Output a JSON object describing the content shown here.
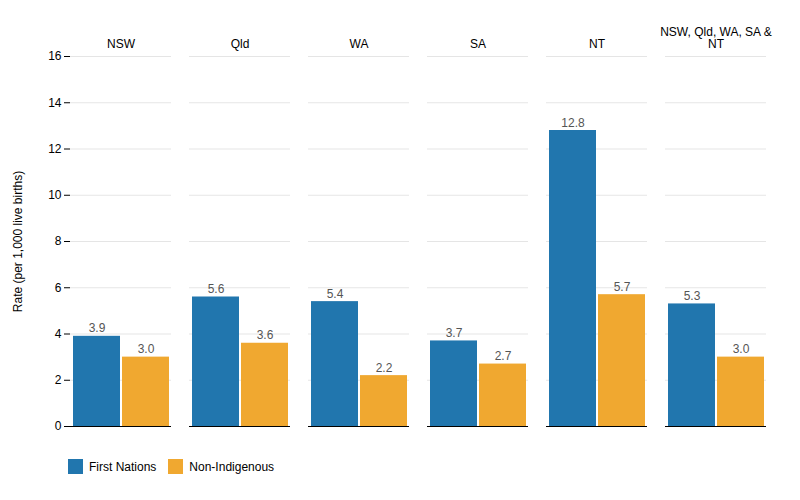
{
  "chart_data": {
    "type": "bar",
    "categories": [
      "NSW",
      "Qld",
      "WA",
      "SA",
      "NT",
      "NSW, Qld, WA, SA &\nNT"
    ],
    "series": [
      {
        "name": "First Nations",
        "color": "#2176ae",
        "values": [
          3.9,
          5.6,
          5.4,
          3.7,
          12.8,
          5.3
        ],
        "value_labels": [
          "3.9",
          "5.6",
          "5.4",
          "3.7",
          "12.8",
          "5.3"
        ]
      },
      {
        "name": "Non-Indigenous",
        "color": "#f0a830",
        "values": [
          3.0,
          3.6,
          2.2,
          2.7,
          5.7,
          3.0
        ],
        "value_labels": [
          "3.0",
          "3.6",
          "2.2",
          "2.7",
          "5.7",
          "3.0"
        ]
      }
    ],
    "ylabel": "Rate (per 1,000 live births)",
    "ylim": [
      0,
      16
    ],
    "yticks": [
      0,
      2,
      4,
      6,
      8,
      10,
      12,
      14,
      16
    ],
    "grid": true,
    "legend": "lower left",
    "data_labels": true
  }
}
